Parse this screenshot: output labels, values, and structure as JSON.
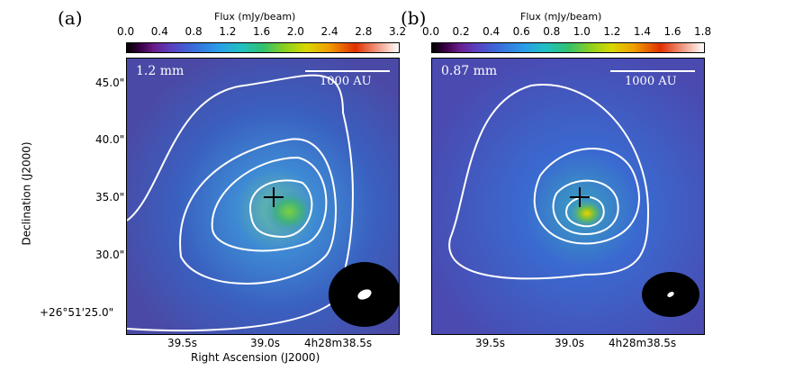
{
  "panels": [
    {
      "letter": "(a)",
      "colorbar_title": "Flux (mJy/beam)",
      "colorbar_ticks": [
        "0.0",
        "0.4",
        "0.8",
        "1.2",
        "1.6",
        "2.0",
        "2.4",
        "2.8",
        "3.2"
      ],
      "wavelength": "1.2 mm",
      "scale_label": "1000 AU"
    },
    {
      "letter": "(b)",
      "colorbar_title": "Flux (mJy/beam)",
      "colorbar_ticks": [
        "0.0",
        "0.2",
        "0.4",
        "0.6",
        "0.8",
        "1.0",
        "1.2",
        "1.4",
        "1.6",
        "1.8"
      ],
      "wavelength": "0.87 mm",
      "scale_label": "1000 AU"
    }
  ],
  "y_axis": {
    "label": "Declination (J2000)",
    "ticks": [
      "45.0\"",
      "40.0\"",
      "35.0\"",
      "30.0\"",
      "+26°51'25.0\""
    ]
  },
  "x_axis": {
    "label": "Right Ascension (J2000)",
    "ticks": [
      "39.5s",
      "39.0s",
      "4h28m38.5s"
    ]
  }
}
